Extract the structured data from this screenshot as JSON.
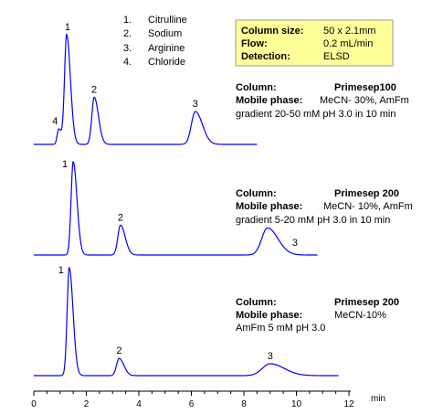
{
  "legend": {
    "items": [
      {
        "num": "1.",
        "name": "Citrulline"
      },
      {
        "num": "2.",
        "name": "Sodium"
      },
      {
        "num": "3.",
        "name": "Arginine"
      },
      {
        "num": "4.",
        "name": "Chloride"
      }
    ]
  },
  "info_box": {
    "background": "#ffff99",
    "rows": [
      {
        "label": "Column size:",
        "value": "50 x 2.1mm"
      },
      {
        "label": "Flow:",
        "value": "0.2 mL/min"
      },
      {
        "label": "Detection:",
        "value": "ELSD"
      }
    ]
  },
  "panels": [
    {
      "column_label": "Column:",
      "column_value": "Primesep100",
      "mobile_label": "Mobile phase:",
      "mobile_value": "MeCN- 30%, AmFm",
      "extra_line": "gradient 20-50 mM  pH 3.0 in 10 min"
    },
    {
      "column_label": "Column:",
      "column_value": "Primesep 200",
      "mobile_label": "Mobile phase:",
      "mobile_value": "MeCN- 10%, AmFm",
      "extra_line": "gradient 5-20 mM  pH 3.0 in 10 min"
    },
    {
      "column_label": "Column:",
      "column_value": "Primesep 200",
      "mobile_label": "Mobile phase:",
      "mobile_value": "MeCN-10%",
      "extra_line": "AmFm 5 mM  pH 3.0"
    }
  ],
  "chart_data": {
    "type": "line",
    "xlabel": "min",
    "xlim": [
      0,
      12
    ],
    "x_ticks": [
      0,
      2,
      4,
      6,
      8,
      10,
      12
    ],
    "x_tick_labels": [
      "0",
      "2",
      "4",
      "6",
      "8",
      "10",
      "12"
    ],
    "line_color": "#0000ff",
    "series": [
      {
        "x_end": 8.5,
        "peaks": [
          {
            "label": "4",
            "t": 0.95,
            "h": 0.14,
            "w": 0.06
          },
          {
            "label": "1",
            "t": 1.25,
            "h": 1.0,
            "w": 0.08
          },
          {
            "label": "2",
            "t": 2.3,
            "h": 0.43,
            "w": 0.09
          },
          {
            "label": "3",
            "t": 6.15,
            "h": 0.3,
            "w": 0.15
          }
        ]
      },
      {
        "x_end": 10.8,
        "peaks": [
          {
            "label": "1",
            "t": 1.5,
            "h": 1.0,
            "w": 0.08
          },
          {
            "label": "2",
            "t": 3.3,
            "h": 0.32,
            "w": 0.1
          },
          {
            "label": "3",
            "t": 8.9,
            "h": 0.29,
            "w": 0.22
          }
        ]
      },
      {
        "x_end": 11.6,
        "peaks": [
          {
            "label": "1",
            "t": 1.35,
            "h": 1.0,
            "w": 0.08
          },
          {
            "label": "2",
            "t": 3.25,
            "h": 0.16,
            "w": 0.1
          },
          {
            "label": "3",
            "t": 9.0,
            "h": 0.11,
            "w": 0.3
          }
        ]
      }
    ]
  }
}
